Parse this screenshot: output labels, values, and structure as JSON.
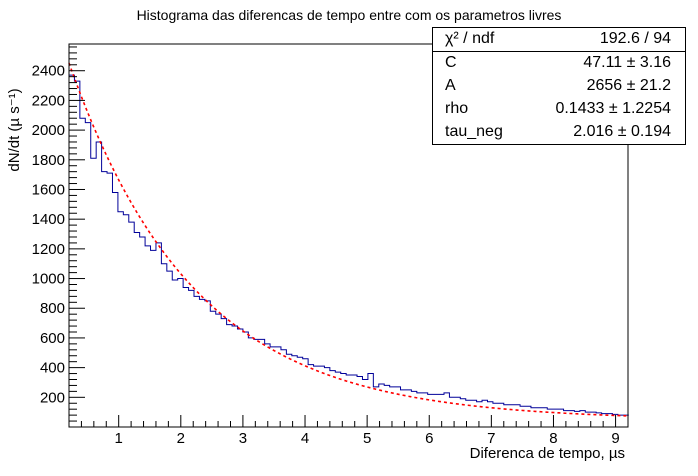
{
  "chart_data": {
    "type": "histogram",
    "title": "Histograma das diferencas de tempo entre com os parametros livres",
    "xlabel": "Diferenca de tempo, µs",
    "ylabel": "dN/dt (µ s⁻¹)",
    "xlim": [
      0.2,
      9.2
    ],
    "ylim": [
      0,
      2580
    ],
    "x_ticks": [
      1,
      2,
      3,
      4,
      5,
      6,
      7,
      8,
      9
    ],
    "y_ticks": [
      200,
      400,
      600,
      800,
      1000,
      1200,
      1400,
      1600,
      1800,
      2000,
      2200,
      2400
    ],
    "bin_width": 0.0875,
    "bins_start": 0.2,
    "series": [
      {
        "kind": "histogram",
        "color": "#000099",
        "values": [
          2370,
          2330,
          2080,
          2050,
          1810,
          1920,
          1720,
          1710,
          1580,
          1450,
          1430,
          1380,
          1310,
          1280,
          1220,
          1190,
          1240,
          1100,
          1050,
          990,
          1000,
          940,
          920,
          880,
          860,
          850,
          780,
          760,
          730,
          690,
          680,
          660,
          640,
          600,
          590,
          590,
          560,
          540,
          540,
          520,
          490,
          480,
          470,
          460,
          420,
          410,
          410,
          400,
          380,
          370,
          360,
          350,
          350,
          340,
          320,
          360,
          270,
          290,
          280,
          270,
          270,
          250,
          250,
          240,
          230,
          230,
          220,
          220,
          220,
          230,
          200,
          200,
          190,
          180,
          180,
          170,
          180,
          170,
          160,
          160,
          150,
          150,
          150,
          140,
          140,
          130,
          130,
          130,
          120,
          120,
          120,
          110,
          110,
          105,
          110,
          100,
          100,
          95,
          90,
          90,
          85,
          80,
          80
        ]
      },
      {
        "kind": "fit",
        "color": "#ff0000",
        "formula": "C + A*exp(-t/tau_neg)",
        "params": {
          "C": 47.11,
          "A": 2656,
          "tau_neg": 2.016
        }
      }
    ],
    "stats_box": {
      "header": {
        "name": "χ² / ndf",
        "value": "192.6 / 94"
      },
      "rows": [
        {
          "name": "C",
          "value": "47.11 ± 3.16"
        },
        {
          "name": "A",
          "value": "2656 ± 21.2"
        },
        {
          "name": "rho",
          "value": "0.1433 ± 1.2254"
        },
        {
          "name": "tau_neg",
          "value": "2.016 ± 0.194"
        }
      ]
    }
  }
}
